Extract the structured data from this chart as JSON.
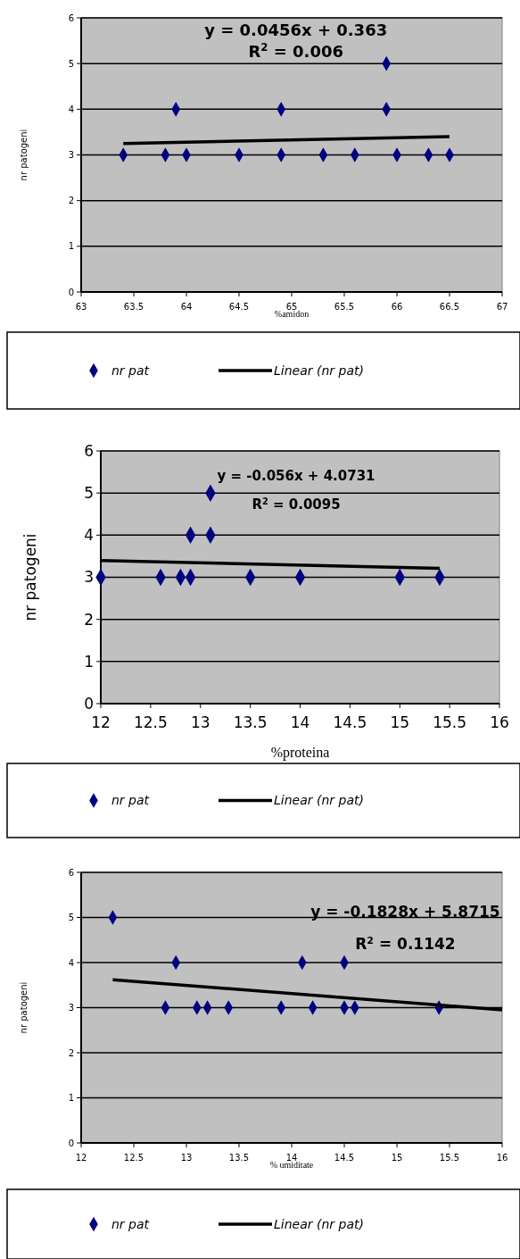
{
  "chart_data": [
    {
      "type": "scatter",
      "xlabel": "%amidon",
      "ylabel": "nr patogeni",
      "xlim": [
        63,
        67
      ],
      "xticks": [
        63,
        63.5,
        64,
        64.5,
        65,
        65.5,
        66,
        66.5,
        67
      ],
      "ylim": [
        0,
        6
      ],
      "yticks": [
        0,
        1,
        2,
        3,
        4,
        5,
        6
      ],
      "grid": "y",
      "legend": "bottom",
      "annotations": [
        "y = 0.0456x + 0.363",
        "R$^{2}$ = 0.006"
      ],
      "series": [
        {
          "name": "nr pat",
          "marker": "diamond",
          "color": "#000080",
          "x": [
            63.4,
            63.8,
            63.9,
            64,
            64.5,
            64.9,
            64.9,
            65.3,
            65.6,
            65.9,
            65.9,
            66,
            66.3,
            66.5
          ],
          "values": [
            3,
            3,
            4,
            3,
            3,
            4,
            3,
            3,
            3,
            5,
            4,
            3,
            3,
            3
          ]
        },
        {
          "name": "Linear (nr pat)",
          "type": "line",
          "line_style": "solid",
          "color": "#000000",
          "x": [
            63.4,
            66.5
          ],
          "values": [
            3.25,
            3.4
          ]
        }
      ]
    },
    {
      "type": "scatter",
      "xlabel": "%proteina",
      "ylabel": "nr patogeni",
      "xlim": [
        12,
        16
      ],
      "xticks": [
        12,
        12.5,
        13,
        13.5,
        14,
        14.5,
        15,
        15.5,
        16
      ],
      "ylim": [
        0,
        6
      ],
      "yticks": [
        0,
        1,
        2,
        3,
        4,
        5,
        6
      ],
      "grid": "y",
      "legend": "bottom",
      "annotations": [
        "y = -0.056x + 4.0731",
        "R$^{2}$ = 0.0095"
      ],
      "series": [
        {
          "name": "nr pat",
          "marker": "diamond",
          "color": "#000080",
          "x": [
            12,
            12.6,
            12.8,
            12.9,
            12.9,
            13.1,
            13.1,
            13.5,
            14,
            15,
            15.4
          ],
          "values": [
            3,
            3,
            3,
            3,
            4,
            4,
            5,
            3,
            3,
            3,
            3
          ]
        },
        {
          "name": "Linear (nr pat)",
          "type": "line",
          "line_style": "solid",
          "color": "#000000",
          "x": [
            12,
            15.4
          ],
          "values": [
            3.4,
            3.21
          ]
        }
      ]
    },
    {
      "type": "scatter",
      "xlabel": "% umiditate",
      "ylabel": "nr patogeni",
      "xlim": [
        12,
        16
      ],
      "xticks": [
        12,
        12.5,
        13,
        13.5,
        14,
        14.5,
        15,
        15.5,
        16
      ],
      "ylim": [
        0,
        6
      ],
      "yticks": [
        0,
        1,
        2,
        3,
        4,
        5,
        6
      ],
      "grid": "y",
      "legend": "bottom",
      "annotations": [
        "y = -0.1828x + 5.8715",
        "R$^{2}$ = 0.1142"
      ],
      "series": [
        {
          "name": "nr pat",
          "marker": "diamond",
          "color": "#000080",
          "x": [
            12.3,
            12.8,
            12.9,
            13.1,
            13.2,
            13.4,
            13.9,
            14.1,
            14.2,
            14.5,
            14.5,
            14.6,
            15.4
          ],
          "values": [
            5,
            3,
            4,
            3,
            3,
            3,
            3,
            4,
            3,
            4,
            3,
            3,
            3
          ]
        },
        {
          "name": "Linear (nr pat)",
          "type": "line",
          "line_style": "solid",
          "color": "#000000",
          "x": [
            12.3,
            16
          ],
          "values": [
            3.62,
            2.95
          ]
        }
      ]
    }
  ]
}
